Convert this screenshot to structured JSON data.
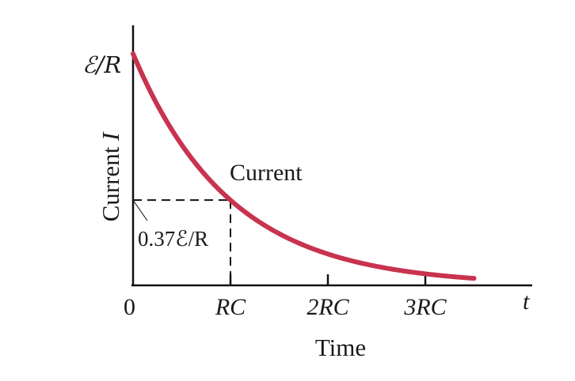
{
  "chart_data": {
    "type": "line",
    "title": "",
    "xlabel": "Time",
    "ylabel": "Current",
    "ylabel_symbol": "I",
    "x_end_label": "t",
    "x_ticks": [
      {
        "value": 0,
        "label": "0"
      },
      {
        "value": 1,
        "label": "RC"
      },
      {
        "value": 2,
        "label": "2RC"
      },
      {
        "value": 3,
        "label": "3RC"
      }
    ],
    "y_tick_label": "ℰ/R",
    "y_max_value": 1.0,
    "xlim": [
      0,
      3.85
    ],
    "ylim": [
      0,
      1.1
    ],
    "series": [
      {
        "name": "Current",
        "color": "#c8334f",
        "formula": "I = (ℰ/R) e^(-t/RC)",
        "x": [
          0,
          0.25,
          0.5,
          0.75,
          1,
          1.25,
          1.5,
          1.75,
          2,
          2.25,
          2.5,
          2.75,
          3,
          3.25,
          3.5
        ],
        "y": [
          1.0,
          0.779,
          0.607,
          0.472,
          0.368,
          0.287,
          0.223,
          0.174,
          0.135,
          0.105,
          0.082,
          0.064,
          0.05,
          0.039,
          0.03
        ]
      }
    ],
    "annotation": {
      "label": "0.37ℰ/R",
      "x": 1,
      "y": 0.368
    },
    "grid": false,
    "legend": "none"
  }
}
